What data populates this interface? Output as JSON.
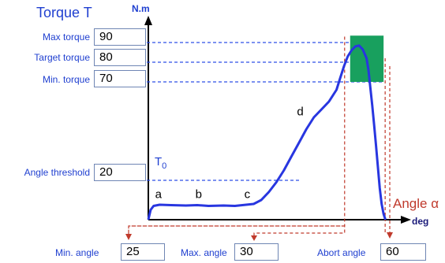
{
  "chart_data": {
    "type": "line",
    "title": "",
    "ylabel": "Torque T",
    "yunit": "N.m",
    "xlabel": "Angle α",
    "xunit": "deg",
    "ylim": [
      0,
      100
    ],
    "xlim": [
      0,
      65
    ],
    "series": [
      {
        "x": [
          0,
          0.6,
          1.4,
          3,
          6,
          10,
          13,
          16,
          20,
          23,
          26,
          28,
          30,
          32,
          34,
          36,
          38,
          40,
          42,
          44,
          46,
          48,
          50,
          51,
          52,
          53,
          54,
          55,
          56,
          57,
          58,
          58.5,
          59,
          59.5,
          60,
          60.5,
          61,
          61.5,
          62,
          62.5,
          63
        ],
        "y": [
          0,
          5,
          7,
          7.6,
          7.4,
          7.2,
          7.4,
          7.0,
          7.2,
          7.0,
          7.6,
          8,
          10,
          14,
          19,
          25,
          32,
          39,
          46,
          52,
          56,
          60,
          66,
          72,
          78,
          83,
          86,
          88,
          88.5,
          86.5,
          82,
          76,
          67,
          58,
          48,
          38,
          27,
          16,
          8,
          3,
          0
        ]
      }
    ],
    "annotations": {
      "phase_labels": [
        {
          "text": "a",
          "x": 1.8,
          "y": 11
        },
        {
          "text": "b",
          "x": 12.5,
          "y": 11
        },
        {
          "text": "c",
          "x": 25.5,
          "y": 11
        },
        {
          "text": "d",
          "x": 39.5,
          "y": 53
        }
      ],
      "t0_label": "T",
      "t0_subscript": "0",
      "target_box_color": "#18a05e",
      "curve_color": "#2836e0",
      "guide_color": "#2f4fe6",
      "abort_guide_color": "#c03a2c"
    }
  },
  "left_panel": {
    "max_torque": {
      "label": "Max torque",
      "value": "90",
      "torque": 90
    },
    "target_torque": {
      "label": "Target torque",
      "value": "80",
      "torque": 80
    },
    "min_torque": {
      "label": "Min. torque",
      "value": "70",
      "torque": 70
    },
    "angle_threshold": {
      "label": "Angle threshold",
      "value": "20",
      "torque": 20
    }
  },
  "bottom_panel": {
    "min_angle": {
      "label": "Min. angle",
      "value": "25",
      "angle": 53
    },
    "max_angle": {
      "label": "Max. angle",
      "value": "30",
      "angle": 60
    },
    "abort_angle": {
      "label": "Abort angle",
      "value": "60",
      "angle": 65
    }
  }
}
